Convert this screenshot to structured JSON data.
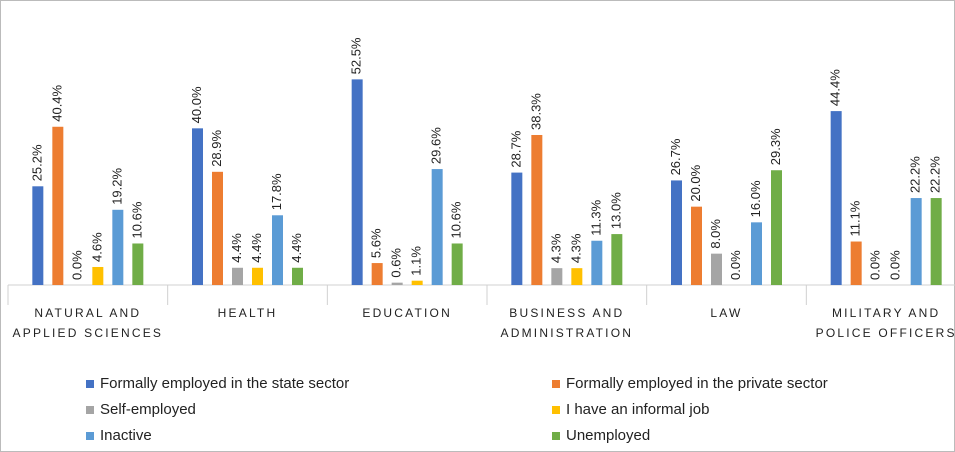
{
  "chart_data": {
    "type": "bar",
    "categories": [
      "NATURAL AND APPLIED SCIENCES",
      "HEALTH",
      "EDUCATION",
      "BUSINESS AND ADMINISTRATION",
      "LAW",
      "MILITARY AND POLICE OFFICERS"
    ],
    "series": [
      {
        "name": "Formally employed in the state sector",
        "color": "#4472c4",
        "values": [
          25.2,
          40.0,
          52.5,
          28.7,
          26.7,
          44.4
        ],
        "value_labels": [
          "25.2%",
          "40.0%",
          "52.5%",
          "28.7%",
          "26.7%",
          "44.4%"
        ]
      },
      {
        "name": "Formally employed in the private sector",
        "color": "#ed7d31",
        "values": [
          40.4,
          28.9,
          5.6,
          38.3,
          20.0,
          11.1
        ],
        "value_labels": [
          "40.4%",
          "28.9%",
          "5.6%",
          "38.3%",
          "20.0%",
          "11.1%"
        ]
      },
      {
        "name": "Self-employed",
        "color": "#a5a5a5",
        "values": [
          0.0,
          4.4,
          0.6,
          4.3,
          8.0,
          0.0
        ],
        "value_labels": [
          "0.0%",
          "4.4%",
          "0.6%",
          "4.3%",
          "8.0%",
          "0.0%"
        ]
      },
      {
        "name": "I have an informal job",
        "color": "#ffc000",
        "values": [
          4.6,
          4.4,
          1.1,
          4.3,
          0.0,
          0.0
        ],
        "value_labels": [
          "4.6%",
          "4.4%",
          "1.1%",
          "4.3%",
          "0.0%",
          "0.0%"
        ]
      },
      {
        "name": "Inactive",
        "color": "#5b9bd5",
        "values": [
          19.2,
          17.8,
          29.6,
          11.3,
          16.0,
          22.2
        ],
        "value_labels": [
          "19.2%",
          "17.8%",
          "29.6%",
          "11.3%",
          "16.0%",
          "22.2%"
        ]
      },
      {
        "name": "Unemployed",
        "color": "#70ad47",
        "values": [
          10.6,
          4.4,
          10.6,
          13.0,
          29.3,
          22.2
        ],
        "value_labels": [
          "10.6%",
          "4.4%",
          "10.6%",
          "13.0%",
          "29.3%",
          "22.2%"
        ]
      }
    ],
    "ylim": [
      0,
      60
    ],
    "legend": "bottom"
  }
}
